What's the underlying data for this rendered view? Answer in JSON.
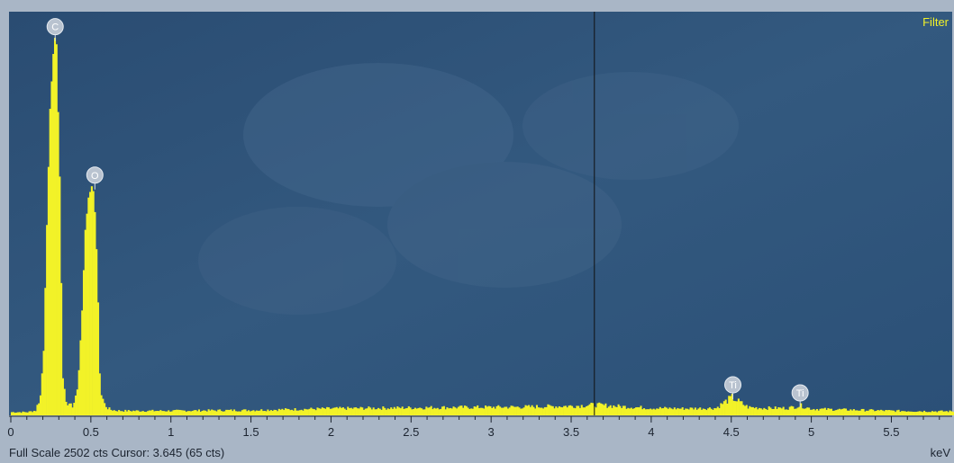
{
  "status": {
    "full_scale_text": "Full Scale 2502 cts Cursor: 3.645  (65 cts)"
  },
  "filter_label": "Filter",
  "colors": {
    "plot_background": "#2d5278",
    "spectrum": "#f2f228",
    "cursor_line": "#111111",
    "marker_fill": "#b9c3d0",
    "filter_text": "#f2f228",
    "frame": "#a9b6c6"
  },
  "chart_data": {
    "type": "area",
    "xlabel": "keV",
    "ylabel": "",
    "xlim": [
      0,
      5.88
    ],
    "ylim": [
      0,
      2502
    ],
    "x_ticks": [
      {
        "value": 0,
        "label": "0"
      },
      {
        "value": 0.5,
        "label": "0.5"
      },
      {
        "value": 1,
        "label": "1"
      },
      {
        "value": 1.5,
        "label": "1.5"
      },
      {
        "value": 2,
        "label": "2"
      },
      {
        "value": 2.5,
        "label": "2.5"
      },
      {
        "value": 3,
        "label": "3"
      },
      {
        "value": 3.5,
        "label": "3.5"
      },
      {
        "value": 4,
        "label": "4"
      },
      {
        "value": 4.5,
        "label": "4.5"
      },
      {
        "value": 5,
        "label": "5"
      },
      {
        "value": 5.5,
        "label": "5.5"
      }
    ],
    "cursor": {
      "x": 3.645,
      "counts": 65
    },
    "peaks": [
      {
        "label": "C",
        "x": 0.277,
        "counts": 2320
      },
      {
        "label": "O",
        "x": 0.525,
        "counts": 1400
      },
      {
        "label": "Ti",
        "x": 4.51,
        "counts": 100
      },
      {
        "label": "Ti",
        "x": 4.93,
        "counts": 50
      }
    ],
    "series": [
      {
        "x": [
          0.1,
          0.15,
          0.18,
          0.2,
          0.22,
          0.24,
          0.26,
          0.27,
          0.28,
          0.29,
          0.3,
          0.31,
          0.32,
          0.34,
          0.36,
          0.38,
          0.4,
          0.42,
          0.44,
          0.46,
          0.48,
          0.5,
          0.51,
          0.52,
          0.53,
          0.54,
          0.55,
          0.56,
          0.58,
          0.6,
          0.62,
          0.65,
          0.7,
          0.8,
          1.0,
          1.2,
          1.5,
          1.8,
          2.0,
          2.3,
          2.6,
          2.9,
          3.2,
          3.5,
          3.65,
          3.8,
          4.0,
          4.2,
          4.4,
          4.45,
          4.5,
          4.55,
          4.6,
          4.7,
          4.85,
          4.9,
          4.93,
          4.96,
          5.0,
          5.2,
          5.5,
          5.8
        ],
        "y": [
          20,
          30,
          120,
          400,
          1180,
          1900,
          2240,
          2340,
          2300,
          1880,
          1480,
          820,
          230,
          100,
          60,
          60,
          100,
          280,
          650,
          1150,
          1350,
          1420,
          1390,
          1260,
          1030,
          700,
          260,
          130,
          70,
          45,
          35,
          30,
          28,
          28,
          28,
          30,
          32,
          38,
          42,
          45,
          48,
          50,
          52,
          58,
          65,
          55,
          45,
          42,
          45,
          80,
          110,
          80,
          50,
          45,
          45,
          55,
          60,
          50,
          40,
          35,
          28,
          25
        ]
      }
    ]
  }
}
